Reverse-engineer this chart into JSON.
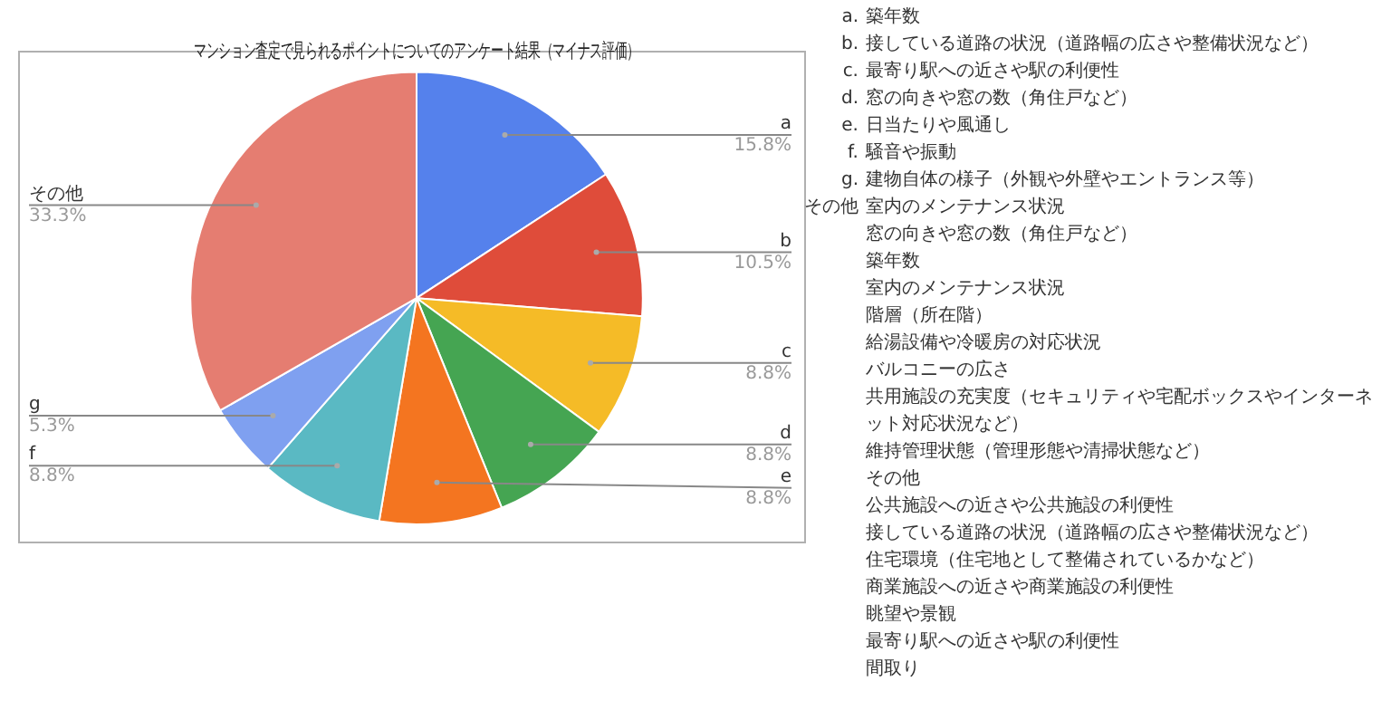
{
  "chart_data": {
    "type": "pie",
    "title": "マンション査定で見られるポイントについてのアンケート結果（マイナス評価）",
    "categories": [
      "a",
      "b",
      "c",
      "d",
      "e",
      "f",
      "g",
      "その他"
    ],
    "values": [
      15.8,
      10.5,
      8.8,
      8.8,
      8.8,
      8.8,
      5.3,
      33.3
    ],
    "value_labels": [
      "15.8%",
      "10.5%",
      "8.8%",
      "8.8%",
      "8.8%",
      "8.8%",
      "5.3%",
      "33.3%"
    ],
    "colors": [
      "#5581ec",
      "#df4c3a",
      "#f5bb27",
      "#45a552",
      "#f47520",
      "#5ab9c3",
      "#7fa0f0",
      "#e57d71"
    ],
    "legend": false,
    "annotations": [
      "a. 築年数",
      "b. 接している道路の状況（道路幅の広さや整備状況など）",
      "c. 最寄り駅への近さや駅の利便性",
      "d. 窓の向きや窓の数（角住戸など）",
      "e. 日当たりや風通し",
      "f. 騒音や振動",
      "g. 建物自体の様子（外観や外壁やエントランス等）",
      "その他 室内のメンテナンス状況",
      "窓の向きや窓の数（角住戸など）",
      "築年数",
      "室内のメンテナンス状況",
      "階層（所在階）",
      "給湯設備や冷暖房の対応状況",
      "バルコニーの広さ",
      "共用施設の充実度（セキュリティや宅配ボックスやインターネット対応状況など）",
      "維持管理状態（管理形態や清掃状態など）",
      "その他",
      "公共施設への近さや公共施設の利便性",
      "接している道路の状況（道路幅の広さや整備状況など）",
      "住宅環境（住宅地として整備されているかなど）",
      "商業施設への近さや商業施設の利便性",
      "眺望や景観",
      "最寄り駅への近さや駅の利便性",
      "間取り"
    ]
  }
}
